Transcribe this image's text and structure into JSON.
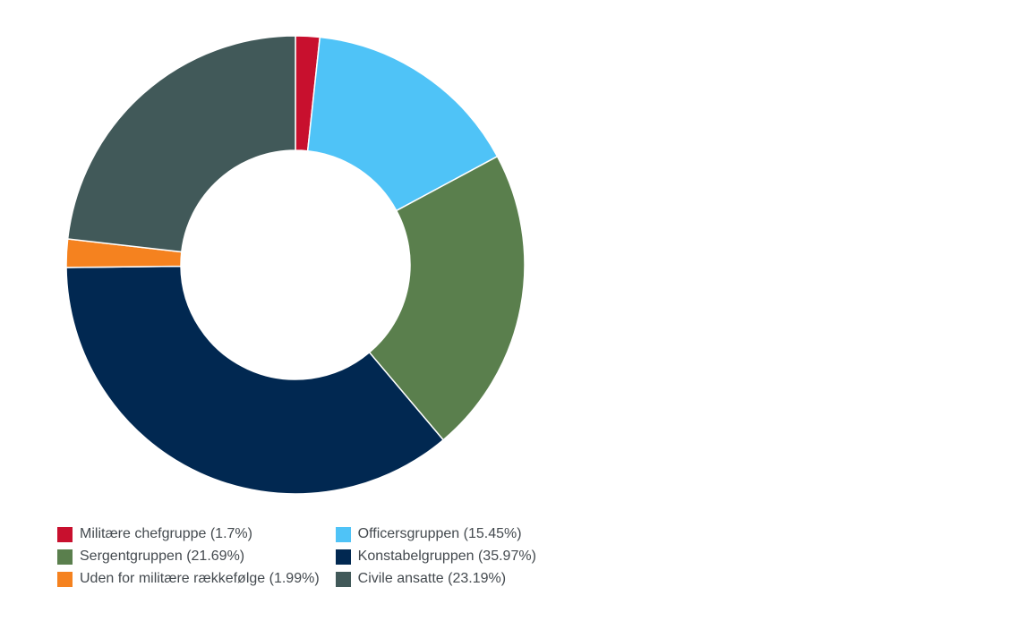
{
  "chart_data": {
    "type": "pie",
    "donut": true,
    "title": "",
    "legend_placement": "bottom-left",
    "slices": [
      {
        "label": "Militære chefgruppe (1.7%)",
        "value": 1.7,
        "color": "#c8102e"
      },
      {
        "label": "Officersgruppen (15.45%)",
        "value": 15.45,
        "color": "#4fc3f7"
      },
      {
        "label": "Sergentgruppen (21.69%)",
        "value": 21.69,
        "color": "#5a7f4d"
      },
      {
        "label": "Konstabelgruppen (35.97%)",
        "value": 35.97,
        "color": "#012851"
      },
      {
        "label": "Uden for militære rækkefølge (1.99%)",
        "value": 1.99,
        "color": "#f5821f"
      },
      {
        "label": "Civile ansatte (23.19%)",
        "value": 23.19,
        "color": "#415959"
      }
    ]
  }
}
